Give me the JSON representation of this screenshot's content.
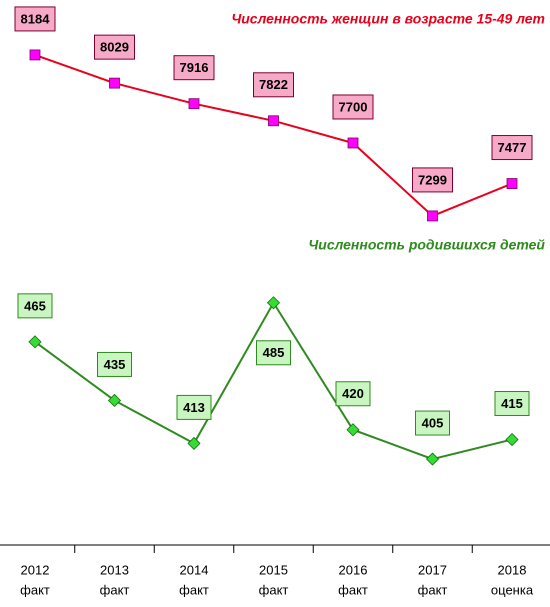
{
  "chart_data": {
    "type": "line",
    "categories": [
      "2012",
      "2013",
      "2014",
      "2015",
      "2016",
      "2017",
      "2018"
    ],
    "category_sublabels": [
      "факт",
      "факт",
      "факт",
      "факт",
      "факт",
      "факт",
      "оценка"
    ],
    "ylim": [
      5490,
      8486
    ],
    "y2lim": [
      361,
      640
    ],
    "series": [
      {
        "name": "Численность женщин в возрасте 15-49 лет",
        "color": "#e8001c",
        "marker_color": "#ff00ff",
        "marker": "square",
        "label_fill": "#f7a9c8",
        "label_border": "#7a0030",
        "values": [
          8184,
          8029,
          7916,
          7822,
          7700,
          7299,
          7477
        ]
      },
      {
        "name": "Численность родившихся детей",
        "color": "#2e8b1e",
        "marker_color": "#33dd33",
        "marker": "diamond",
        "label_fill": "#c8f5c0",
        "label_border": "#2e8b1e",
        "axis": "y2",
        "values": [
          465,
          435,
          413,
          485,
          420,
          405,
          415
        ]
      }
    ]
  }
}
